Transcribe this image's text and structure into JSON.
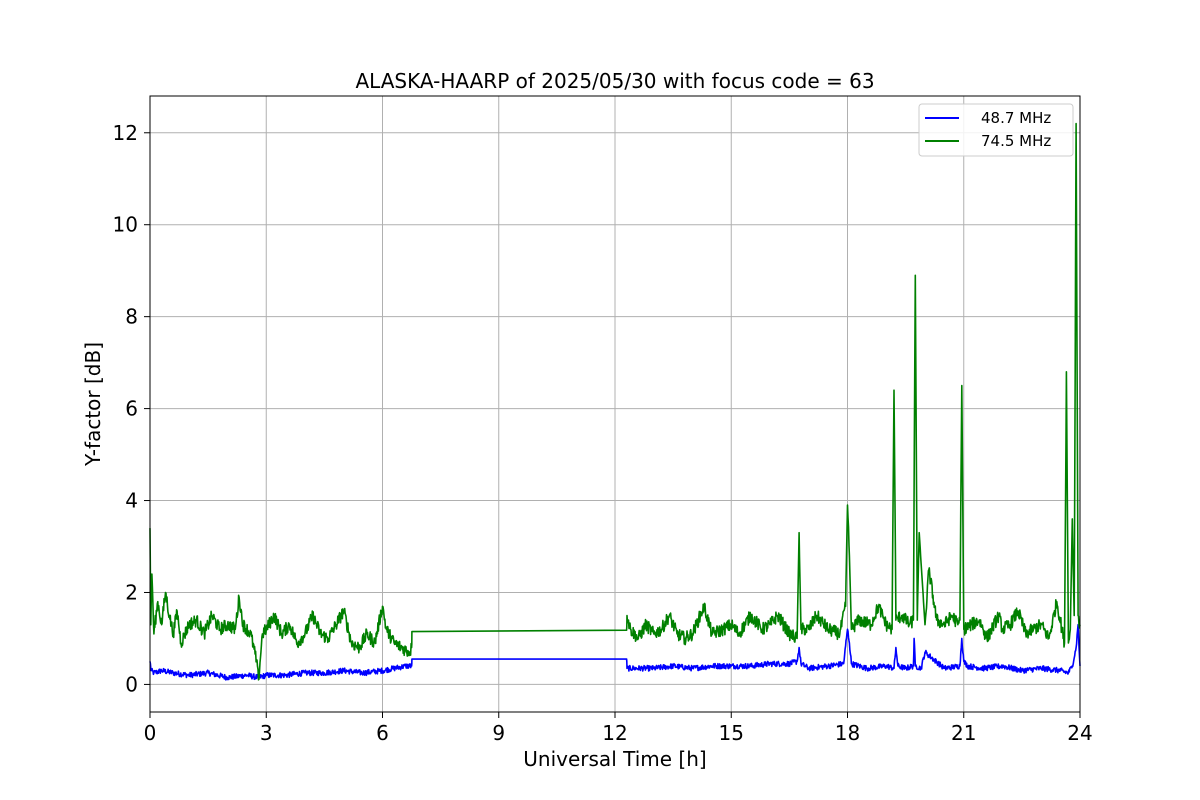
{
  "chart_data": {
    "type": "line",
    "title": "ALASKA-HAARP of 2025/05/30 with focus code = 63",
    "xlabel": "Universal Time [h]",
    "ylabel": "Y-factor [dB]",
    "xlim": [
      0,
      24
    ],
    "ylim": [
      -0.6,
      12.8
    ],
    "xticks": [
      "0",
      "3",
      "6",
      "9",
      "12",
      "15",
      "18",
      "21",
      "24"
    ],
    "yticks": [
      "0",
      "2",
      "4",
      "6",
      "8",
      "10",
      "12"
    ],
    "grid": true,
    "legend_position": "upper right",
    "series": [
      {
        "name": "48.7 MHz",
        "color": "#0000ff",
        "x": [
          0,
          0.03,
          0.1,
          0.3,
          0.6,
          1.0,
          1.5,
          2.0,
          2.5,
          2.8,
          3.0,
          3.5,
          4.0,
          4.5,
          5.0,
          5.5,
          6.0,
          6.3,
          6.6,
          6.75,
          6.76,
          12.3,
          12.31,
          12.5,
          13.0,
          13.5,
          14.0,
          14.5,
          15.0,
          15.5,
          16.0,
          16.5,
          16.7,
          16.75,
          16.8,
          17.0,
          17.5,
          17.9,
          18.0,
          18.05,
          18.1,
          18.5,
          19.0,
          19.2,
          19.25,
          19.3,
          19.5,
          19.7,
          19.72,
          19.75,
          19.9,
          20.0,
          20.5,
          20.9,
          20.95,
          21.0,
          21.1,
          21.5,
          22.0,
          22.5,
          23.0,
          23.5,
          23.7,
          23.8,
          23.9,
          23.95,
          24.0
        ],
        "y": [
          0.5,
          0.3,
          0.25,
          0.3,
          0.25,
          0.2,
          0.25,
          0.15,
          0.2,
          0.15,
          0.2,
          0.2,
          0.25,
          0.25,
          0.3,
          0.25,
          0.3,
          0.35,
          0.4,
          0.4,
          0.55,
          0.55,
          0.35,
          0.35,
          0.35,
          0.4,
          0.35,
          0.4,
          0.4,
          0.4,
          0.45,
          0.45,
          0.5,
          0.8,
          0.45,
          0.35,
          0.4,
          0.45,
          1.2,
          0.9,
          0.45,
          0.35,
          0.4,
          0.35,
          0.8,
          0.4,
          0.35,
          0.4,
          1.0,
          0.4,
          0.35,
          0.7,
          0.35,
          0.4,
          1.0,
          0.5,
          0.4,
          0.35,
          0.4,
          0.3,
          0.35,
          0.3,
          0.25,
          0.4,
          0.8,
          1.3,
          0.4
        ]
      },
      {
        "name": "74.5 MHz",
        "color": "#008000",
        "x": [
          0,
          0.02,
          0.05,
          0.1,
          0.2,
          0.3,
          0.4,
          0.5,
          0.6,
          0.7,
          0.8,
          1.0,
          1.2,
          1.4,
          1.6,
          1.8,
          2.0,
          2.2,
          2.3,
          2.4,
          2.6,
          2.75,
          2.8,
          2.9,
          3.0,
          3.2,
          3.4,
          3.6,
          3.8,
          4.0,
          4.2,
          4.4,
          4.6,
          4.8,
          5.0,
          5.2,
          5.4,
          5.6,
          5.8,
          6.0,
          6.1,
          6.3,
          6.5,
          6.7,
          6.75,
          6.76,
          12.3,
          12.31,
          12.4,
          12.6,
          12.8,
          13.0,
          13.2,
          13.4,
          13.6,
          13.8,
          14.0,
          14.2,
          14.3,
          14.5,
          14.8,
          15.0,
          15.2,
          15.5,
          15.8,
          16.0,
          16.2,
          16.5,
          16.7,
          16.75,
          16.8,
          17.0,
          17.2,
          17.5,
          17.8,
          17.95,
          18.0,
          18.05,
          18.1,
          18.3,
          18.6,
          18.8,
          19.0,
          19.15,
          19.2,
          19.25,
          19.4,
          19.6,
          19.7,
          19.75,
          19.8,
          19.85,
          20.0,
          20.1,
          20.3,
          20.5,
          20.7,
          20.85,
          20.9,
          20.95,
          21.0,
          21.2,
          21.4,
          21.6,
          21.9,
          22.0,
          22.2,
          22.4,
          22.6,
          22.8,
          23.0,
          23.2,
          23.4,
          23.6,
          23.65,
          23.7,
          23.75,
          23.8,
          23.85,
          23.9,
          23.95,
          24.0
        ],
        "y": [
          3.4,
          1.3,
          2.4,
          1.1,
          1.8,
          1.3,
          2.0,
          1.5,
          1.1,
          1.6,
          0.9,
          1.3,
          1.4,
          1.1,
          1.5,
          1.2,
          1.3,
          1.2,
          1.9,
          1.3,
          1.1,
          0.5,
          0.1,
          1.1,
          1.2,
          1.5,
          1.1,
          1.3,
          0.9,
          1.1,
          1.5,
          1.1,
          1.0,
          1.3,
          1.6,
          0.9,
          0.8,
          1.1,
          0.9,
          1.7,
          1.2,
          0.9,
          0.8,
          0.7,
          0.8,
          1.15,
          1.18,
          1.5,
          1.2,
          1.0,
          1.3,
          1.1,
          1.2,
          1.5,
          1.1,
          1.0,
          1.1,
          1.5,
          1.7,
          1.1,
          1.2,
          1.3,
          1.1,
          1.5,
          1.2,
          1.3,
          1.5,
          1.1,
          1.0,
          3.3,
          1.2,
          1.2,
          1.5,
          1.2,
          1.1,
          1.7,
          3.9,
          2.8,
          1.2,
          1.4,
          1.3,
          1.7,
          1.3,
          1.2,
          6.4,
          1.4,
          1.5,
          1.3,
          1.4,
          8.9,
          1.4,
          3.3,
          1.3,
          2.5,
          1.4,
          1.3,
          1.5,
          1.3,
          1.4,
          6.5,
          1.2,
          1.3,
          1.4,
          1.0,
          1.5,
          1.2,
          1.3,
          1.6,
          1.1,
          1.2,
          1.3,
          1.0,
          1.8,
          0.9,
          6.8,
          0.9,
          1.2,
          3.6,
          1.5,
          12.2,
          1.5,
          1.3
        ]
      }
    ]
  }
}
